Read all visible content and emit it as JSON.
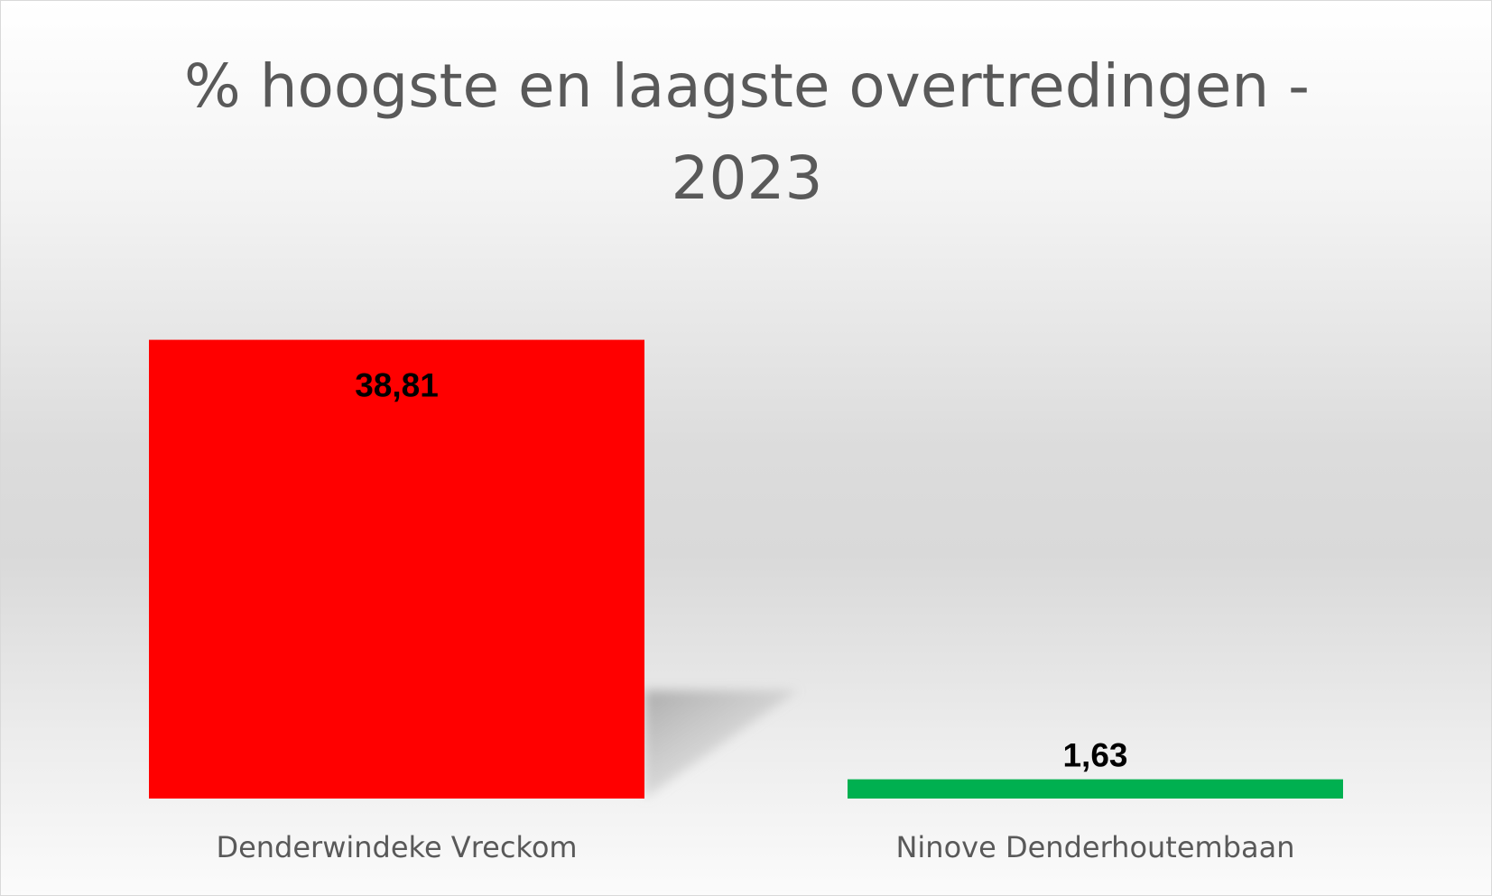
{
  "chart_data": {
    "type": "bar",
    "title_lines": [
      "% hoogste en laagste overtredingen -",
      "2023"
    ],
    "categories": [
      "Denderwindeke Vreckom",
      "Ninove Denderhoutembaan"
    ],
    "values": [
      38.81,
      1.63
    ],
    "value_labels": [
      "38,81",
      "1,63"
    ],
    "bar_colors": [
      "#ff0000",
      "#00b050"
    ],
    "ylim": [
      0,
      40
    ],
    "grid": false,
    "legend": "none",
    "xlabel": "",
    "ylabel": ""
  }
}
